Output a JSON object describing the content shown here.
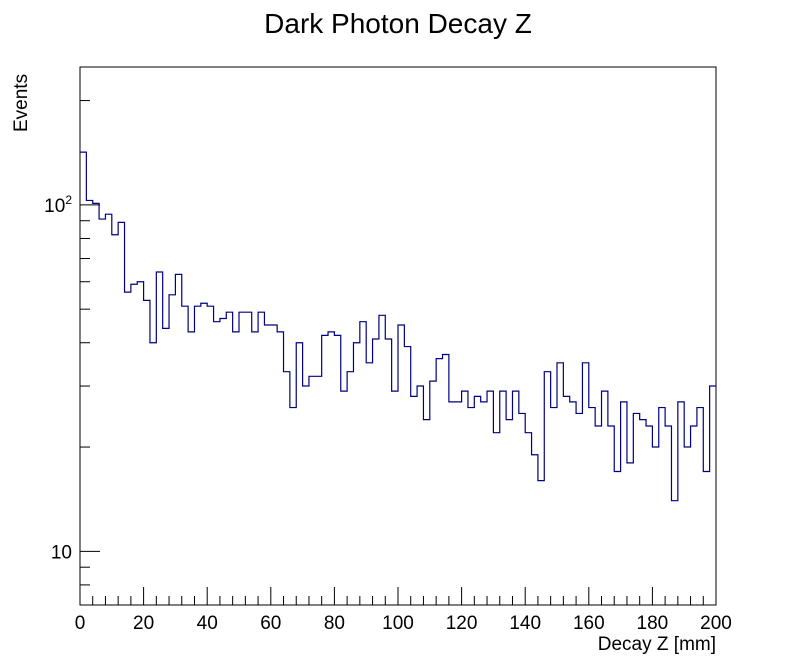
{
  "chart_data": {
    "type": "histogram",
    "title": "Dark Photon Decay Z",
    "xlabel": "Decay Z [mm]",
    "ylabel": "Events",
    "xlim": [
      0,
      200
    ],
    "ylim": [
      7,
      250
    ],
    "yscale": "log",
    "grid": false,
    "line_color": "#000080",
    "bin_width": 2,
    "x_ticks": [
      0,
      20,
      40,
      60,
      80,
      100,
      120,
      140,
      160,
      180,
      200
    ],
    "x_tick_labels": [
      "0",
      "20",
      "40",
      "60",
      "80",
      "100",
      "120",
      "140",
      "160",
      "180",
      "200"
    ],
    "y_ticks": [
      10,
      100
    ],
    "y_tick_labels": [
      {
        "base": "10",
        "exp": ""
      },
      {
        "base": "10",
        "exp": "2"
      }
    ],
    "values": [
      142,
      103,
      101,
      91,
      94,
      82,
      89,
      56,
      59,
      60,
      53,
      40,
      64,
      44,
      55,
      63,
      51,
      43,
      51,
      52,
      51,
      46,
      47,
      49,
      43,
      49,
      49,
      43,
      49,
      45,
      45,
      43,
      33,
      26,
      40,
      30,
      32,
      32,
      42,
      43,
      42,
      29,
      33,
      40,
      46,
      35,
      41,
      48,
      41,
      29,
      45,
      39,
      28,
      30,
      24,
      31,
      36,
      37,
      27,
      27,
      29,
      26,
      28,
      27,
      29,
      22,
      29,
      24,
      29,
      25,
      22,
      19,
      16,
      33,
      26,
      35,
      28,
      27,
      25,
      35,
      26,
      23,
      29,
      23,
      17,
      27,
      18,
      25,
      24,
      23,
      20,
      26,
      23,
      14,
      27,
      20,
      23,
      26,
      17,
      30
    ]
  }
}
